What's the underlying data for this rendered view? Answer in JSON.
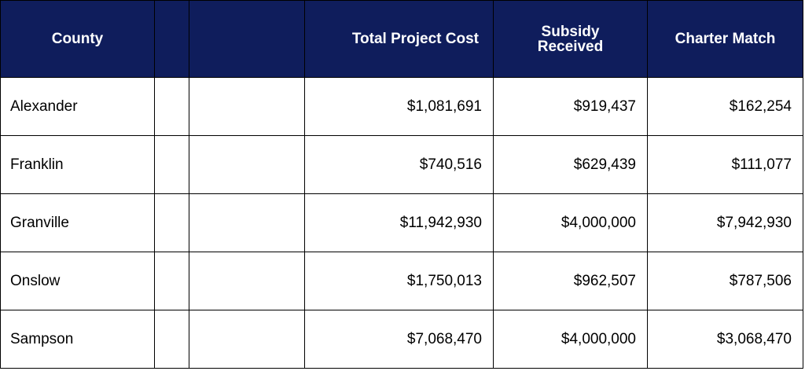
{
  "headers": {
    "county": "County",
    "blank1": "",
    "blank2": "",
    "total_project_cost": "Total Project Cost",
    "subsidy_line1": "Subsidy",
    "subsidy_line2": "Received",
    "charter_match": "Charter Match"
  },
  "colors": {
    "header_bg": "#0f1d5c",
    "header_text": "#ffffff",
    "border": "#000000"
  },
  "rows": [
    {
      "county": "Alexander",
      "total": "$1,081,691",
      "subsidy": "$919,437",
      "match": "$162,254"
    },
    {
      "county": "Franklin",
      "total": "$740,516",
      "subsidy": "$629,439",
      "match": "$111,077"
    },
    {
      "county": "Granville",
      "total": "$11,942,930",
      "subsidy": "$4,000,000",
      "match": "$7,942,930"
    },
    {
      "county": "Onslow",
      "total": "$1,750,013",
      "subsidy": "$962,507",
      "match": "$787,506"
    },
    {
      "county": "Sampson",
      "total": "$7,068,470",
      "subsidy": "$4,000,000",
      "match": "$3,068,470"
    }
  ]
}
